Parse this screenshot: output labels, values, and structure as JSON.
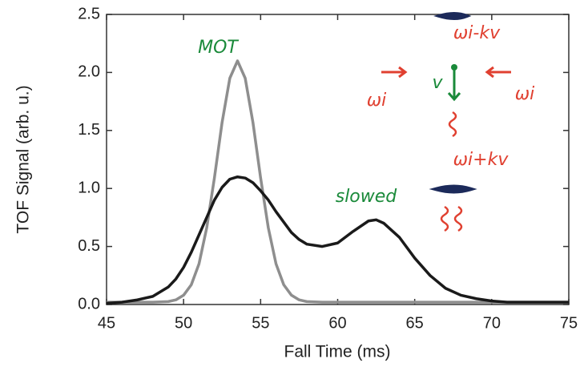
{
  "chart_data": {
    "type": "line",
    "xlabel": "Fall Time (ms)",
    "ylabel": "TOF Signal (arb. u.)",
    "x": [
      45,
      46,
      47,
      48,
      49,
      49.5,
      50,
      50.5,
      51,
      51.5,
      52,
      52.5,
      53,
      53.5,
      54,
      54.5,
      55,
      55.5,
      56,
      56.5,
      57,
      57.5,
      58,
      59,
      60,
      61,
      62,
      62.5,
      63,
      64,
      65,
      66,
      67,
      68,
      69,
      70,
      71,
      72,
      73,
      74,
      75
    ],
    "series": [
      {
        "name": "MOT",
        "color": "#8e8e8e",
        "values": [
          0.02,
          0.02,
          0.02,
          0.02,
          0.025,
          0.04,
          0.08,
          0.17,
          0.35,
          0.66,
          1.09,
          1.57,
          1.95,
          2.1,
          1.95,
          1.57,
          1.09,
          0.66,
          0.35,
          0.17,
          0.08,
          0.04,
          0.025,
          0.02,
          0.02,
          0.02,
          0.02,
          0.02,
          0.02,
          0.02,
          0.02,
          0.02,
          0.02,
          0.02,
          0.02,
          0.02,
          0.02,
          0.02,
          0.02,
          0.02,
          0.02
        ]
      },
      {
        "name": "slowed",
        "color": "#1a1a1a",
        "values": [
          0.01,
          0.02,
          0.04,
          0.07,
          0.15,
          0.22,
          0.32,
          0.45,
          0.6,
          0.75,
          0.9,
          1.01,
          1.08,
          1.1,
          1.09,
          1.05,
          0.98,
          0.9,
          0.8,
          0.71,
          0.62,
          0.56,
          0.52,
          0.5,
          0.53,
          0.63,
          0.72,
          0.73,
          0.7,
          0.58,
          0.4,
          0.25,
          0.14,
          0.08,
          0.05,
          0.03,
          0.02,
          0.02,
          0.02,
          0.02,
          0.02
        ]
      }
    ],
    "xlim": [
      45,
      75
    ],
    "xticks": [
      45,
      50,
      55,
      60,
      65,
      70,
      75
    ],
    "ylim": [
      0,
      2.5
    ],
    "yticks": [
      {
        "value": 0,
        "label": "0.0"
      },
      0.5,
      {
        "value": 1,
        "label": "1.0"
      },
      1.5,
      {
        "value": 2,
        "label": "2.0"
      },
      2.5
    ],
    "annotations": [
      "ωi-kv",
      "ωi",
      "ωi",
      "v",
      "ωi+kv"
    ]
  }
}
